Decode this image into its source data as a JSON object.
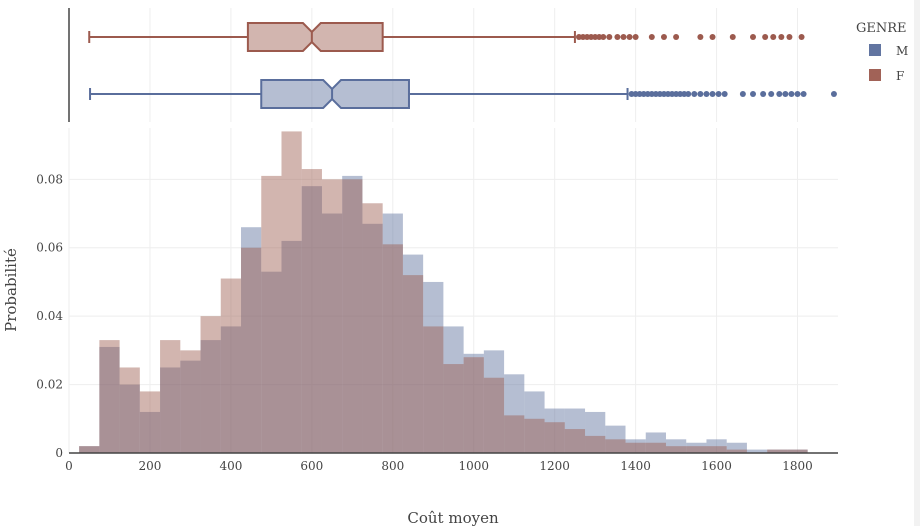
{
  "chart_data": {
    "type": "histogram",
    "title": "",
    "xlabel": "Coût moyen",
    "ylabel": "Probabilité",
    "xlim": [
      0,
      1900
    ],
    "ylim": [
      0,
      0.095
    ],
    "x_ticks": [
      0,
      200,
      400,
      600,
      800,
      1000,
      1200,
      1400,
      1600,
      1800
    ],
    "y_ticks": [
      0,
      0.02,
      0.04,
      0.06,
      0.08
    ],
    "y_tick_labels": [
      "0",
      "0.02",
      "0.04",
      "0.06",
      "0.08"
    ],
    "grid": true,
    "bin_width": 50,
    "bin_starts": [
      25,
      75,
      125,
      175,
      225,
      275,
      325,
      375,
      425,
      475,
      525,
      575,
      625,
      675,
      725,
      775,
      825,
      875,
      925,
      975,
      1025,
      1075,
      1125,
      1175,
      1225,
      1275,
      1325,
      1375,
      1425,
      1475,
      1525,
      1575,
      1625,
      1675,
      1725,
      1775
    ],
    "legend": {
      "title": "GENRE",
      "position": "top-right"
    },
    "series": [
      {
        "name": "M",
        "color": "#5a6e9c",
        "values": [
          0.002,
          0.031,
          0.02,
          0.012,
          0.025,
          0.027,
          0.033,
          0.037,
          0.066,
          0.053,
          0.062,
          0.078,
          0.07,
          0.081,
          0.067,
          0.07,
          0.058,
          0.05,
          0.037,
          0.029,
          0.03,
          0.023,
          0.018,
          0.013,
          0.013,
          0.012,
          0.008,
          0.004,
          0.006,
          0.004,
          0.003,
          0.004,
          0.003,
          0.001,
          0.001,
          0.001
        ],
        "box": {
          "min": 52,
          "q1": 475,
          "median": 650,
          "q3": 840,
          "upper_fence": 1380,
          "outliers": [
            1390,
            1400,
            1410,
            1420,
            1430,
            1440,
            1450,
            1460,
            1470,
            1480,
            1490,
            1500,
            1510,
            1520,
            1530,
            1545,
            1560,
            1575,
            1590,
            1605,
            1620,
            1665,
            1690,
            1715,
            1735,
            1755,
            1770,
            1785,
            1800,
            1815,
            1890
          ]
        }
      },
      {
        "name": "F",
        "color": "#9c5a4e",
        "values": [
          0.002,
          0.033,
          0.025,
          0.018,
          0.033,
          0.03,
          0.04,
          0.051,
          0.06,
          0.081,
          0.094,
          0.083,
          0.08,
          0.08,
          0.073,
          0.061,
          0.052,
          0.037,
          0.026,
          0.028,
          0.022,
          0.011,
          0.01,
          0.009,
          0.007,
          0.005,
          0.004,
          0.003,
          0.003,
          0.002,
          0.002,
          0.002,
          0.001,
          0.0,
          0.001,
          0.001
        ],
        "box": {
          "min": 50,
          "q1": 442,
          "median": 600,
          "q3": 775,
          "upper_fence": 1250,
          "outliers": [
            1260,
            1270,
            1280,
            1290,
            1300,
            1310,
            1320,
            1335,
            1355,
            1370,
            1385,
            1400,
            1440,
            1470,
            1500,
            1560,
            1590,
            1640,
            1690,
            1720,
            1740,
            1760,
            1780,
            1810
          ]
        }
      }
    ]
  }
}
